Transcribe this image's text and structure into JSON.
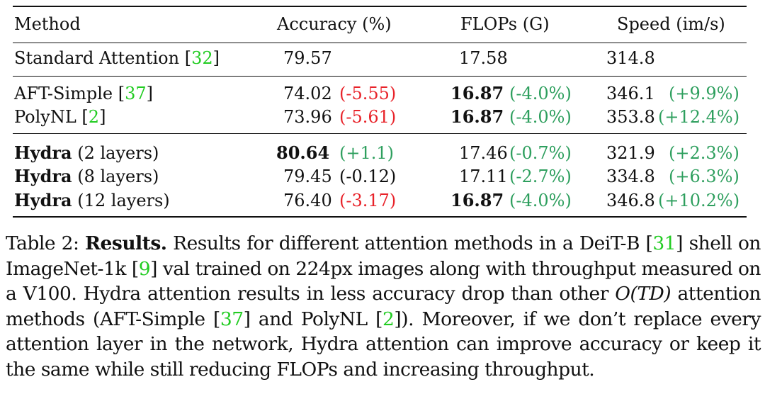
{
  "table": {
    "headers": {
      "method": "Method",
      "accuracy": "Accuracy (%)",
      "flops": "FLOPs (G)",
      "speed": "Speed (im/s)"
    },
    "rows": [
      {
        "method_bold": "",
        "method_text": "Standard Attention [",
        "method_cite": "32",
        "method_tail": "]",
        "accuracy": "79.57",
        "accuracy_delta": "",
        "flops": "17.58",
        "flops_delta": "",
        "speed": "314.8",
        "speed_delta": ""
      },
      {
        "method_bold": "",
        "method_text": "AFT-Simple [",
        "method_cite": "37",
        "method_tail": "]",
        "accuracy": "74.02",
        "accuracy_delta": "(-5.55)",
        "flops": "16.87",
        "flops_delta": "(-4.0%)",
        "speed": "346.1",
        "speed_delta": "(+9.9%)"
      },
      {
        "method_bold": "",
        "method_text": "PolyNL [",
        "method_cite": "2",
        "method_tail": "]",
        "accuracy": "73.96",
        "accuracy_delta": "(-5.61)",
        "flops": "16.87",
        "flops_delta": "(-4.0%)",
        "speed": "353.8",
        "speed_delta": "(+12.4%)"
      },
      {
        "method_bold": "Hydra",
        "method_text": " (2 layers)",
        "accuracy": "80.64",
        "accuracy_delta": "(+1.1)",
        "flops": "17.46",
        "flops_delta": "(-0.7%)",
        "speed": "321.9",
        "speed_delta": "(+2.3%)"
      },
      {
        "method_bold": "Hydra",
        "method_text": " (8 layers)",
        "accuracy": "79.45",
        "accuracy_delta": "(-0.12)",
        "flops": "17.11",
        "flops_delta": "(-2.7%)",
        "speed": "334.8",
        "speed_delta": "(+6.3%)"
      },
      {
        "method_bold": "Hydra",
        "method_text": " (12 layers)",
        "accuracy": "76.40",
        "accuracy_delta": "(-3.17)",
        "flops": "16.87",
        "flops_delta": "(-4.0%)",
        "speed": "346.8",
        "speed_delta": "(+10.2%)"
      }
    ]
  },
  "caption": {
    "label": "Table 2:",
    "title": "Results.",
    "t1": " Results for different attention methods in a DeiT-B [",
    "c1": "31",
    "t2": "] shell on ImageNet-1k [",
    "c2": "9",
    "t3": "] val trained on 224px images along with throughput measured on a V100. Hydra attention results in less accuracy drop than other ",
    "math": "O(TD)",
    "t4": " attention methods (AFT-Simple [",
    "c3": "37",
    "t5": "] and PolyNL [",
    "c4": "2",
    "t6": "]). Moreover, if we don’t replace every attention layer in the network, Hydra attention can improve accuracy or keep it the same while still reducing FLOPs and increasing throughput."
  },
  "colors": {
    "negative": "#e8232a",
    "positive": "#2e9f5e",
    "citation": "#22cc22"
  }
}
